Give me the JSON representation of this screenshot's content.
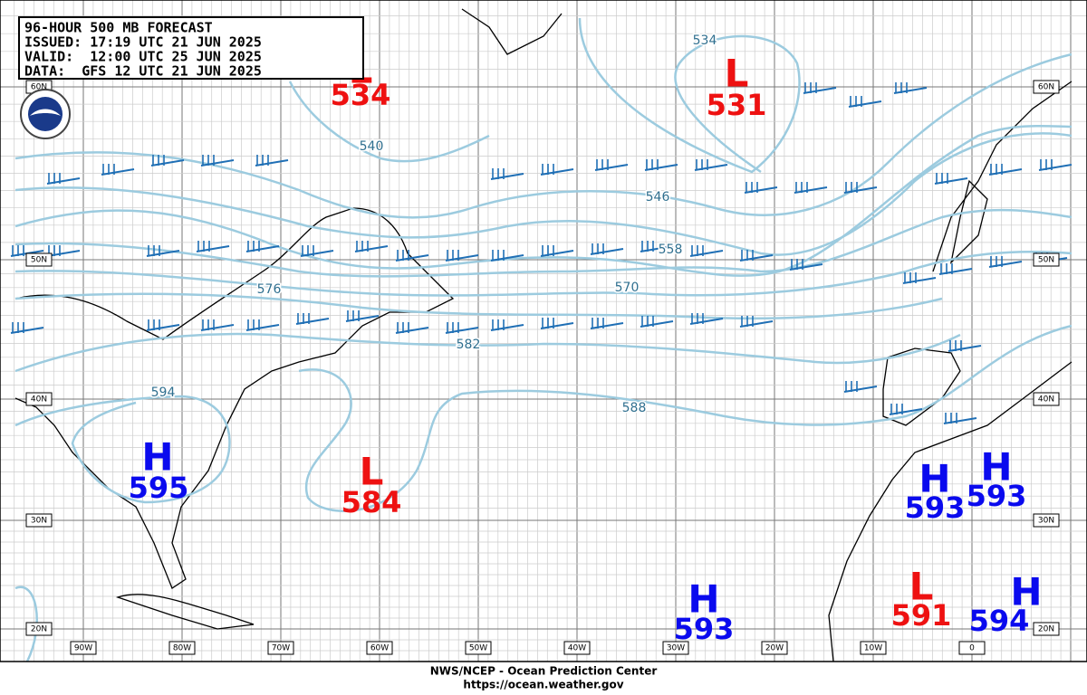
{
  "header": {
    "lines": [
      "96-HOUR 500 MB FORECAST",
      "ISSUED: 17:19 UTC 21 JUN 2025",
      "VALID:  12:00 UTC 25 JUN 2025",
      "DATA:  GFS 12 UTC 21 JUN 2025"
    ]
  },
  "centers": [
    {
      "type": "L",
      "value": 534
    },
    {
      "type": "L",
      "value": 531
    },
    {
      "type": "L",
      "value": 584
    },
    {
      "type": "H",
      "value": 595
    },
    {
      "type": "H",
      "value": 593
    },
    {
      "type": "H",
      "value": 593
    },
    {
      "type": "H",
      "value": 593
    },
    {
      "type": "L",
      "value": 591
    },
    {
      "type": "H",
      "value": 594
    }
  ],
  "contour_labels": [
    534,
    540,
    546,
    558,
    570,
    576,
    582,
    588,
    594
  ],
  "lat_labels": [
    "60N",
    "50N",
    "40N",
    "30N",
    "20N"
  ],
  "lon_labels": [
    "90W",
    "80W",
    "70W",
    "60W",
    "50W",
    "40W",
    "30W",
    "20W",
    "10W",
    "0"
  ],
  "footer": [
    "NWS/NCEP - Ocean Prediction Center",
    "https://ocean.weather.gov"
  ]
}
